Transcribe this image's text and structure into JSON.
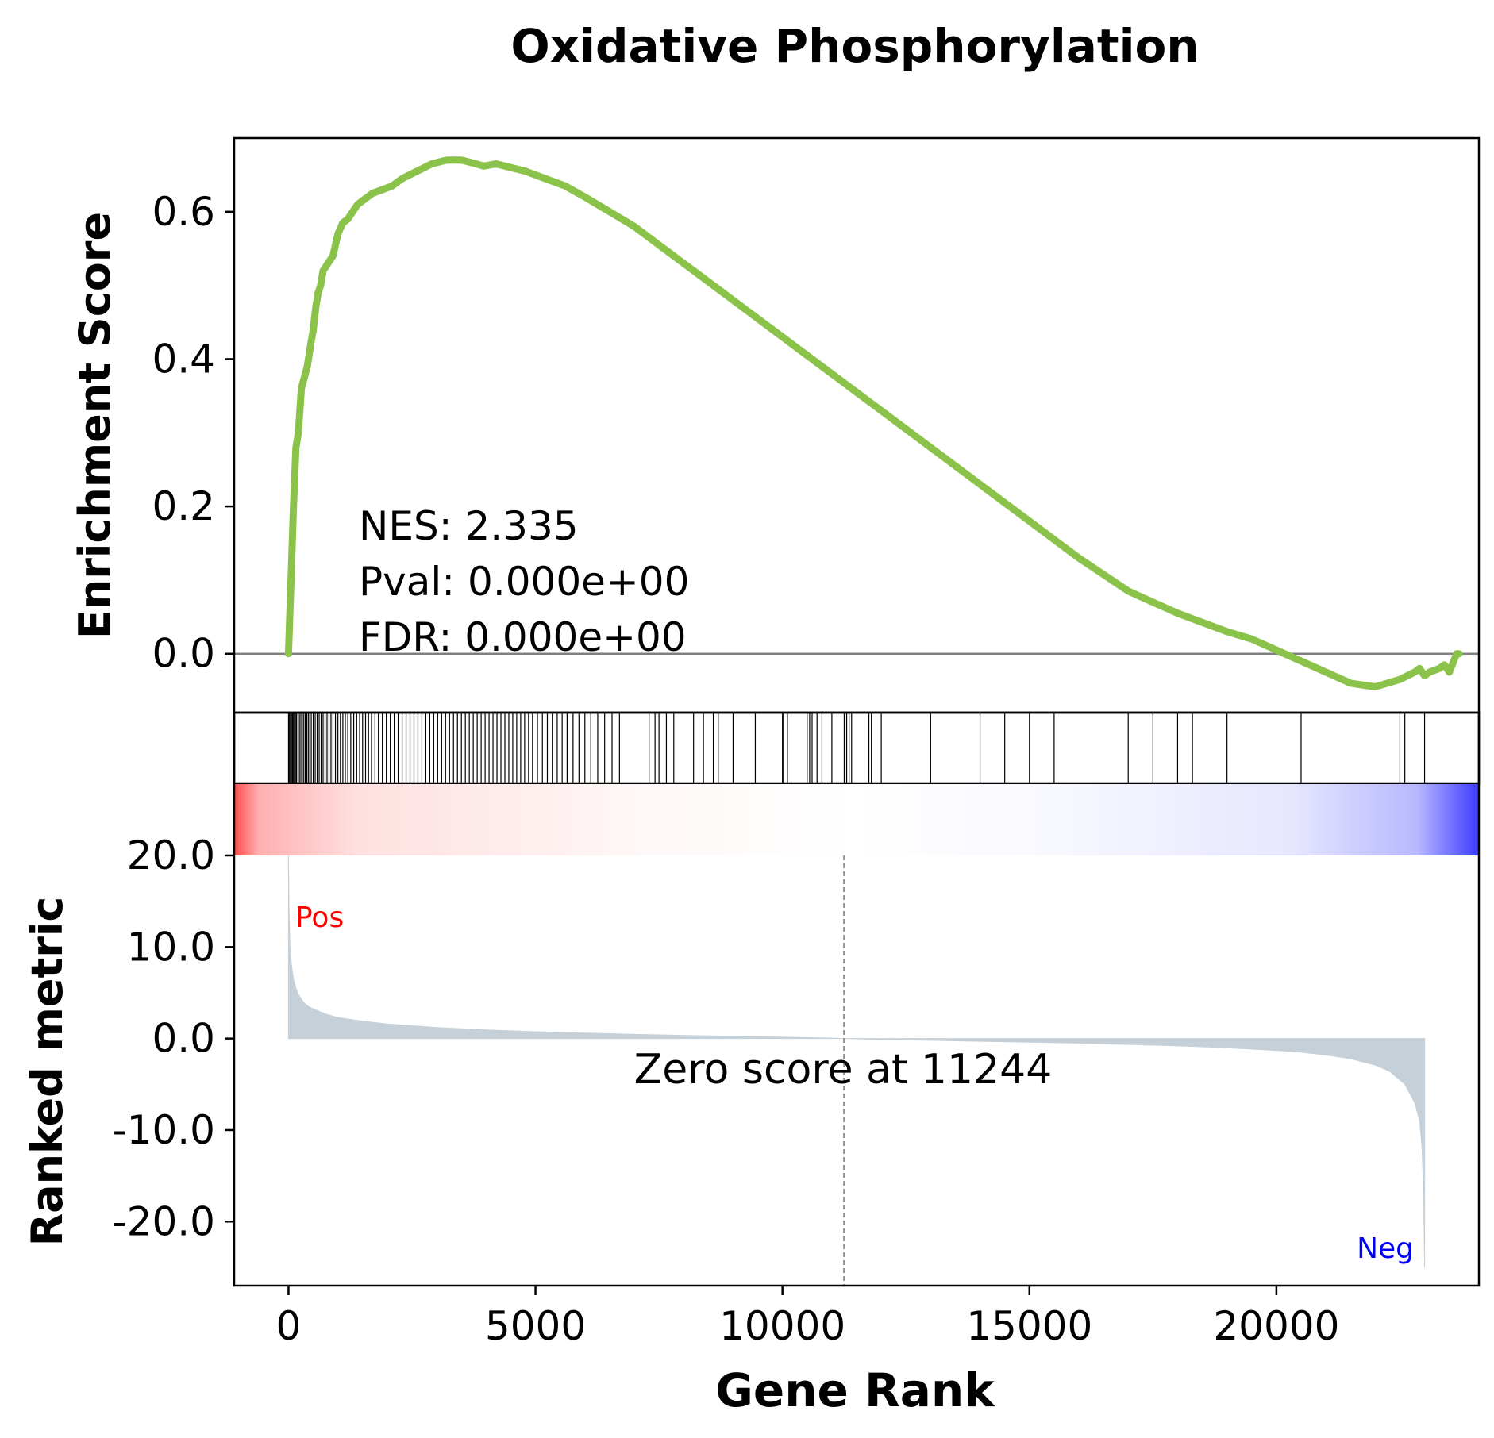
{
  "chart_data": {
    "type": "line",
    "title": "Oxidative Phosphorylation",
    "xlabel": "Gene Rank",
    "xlim": [
      -1100,
      24100
    ],
    "x_ticks": [
      0,
      5000,
      10000,
      15000,
      20000
    ],
    "x_tick_labels": [
      "0",
      "5000",
      "10000",
      "15000",
      "20000"
    ],
    "es_panel": {
      "ylabel": "Enrichment Score",
      "ylim": [
        -0.08,
        0.7
      ],
      "y_ticks": [
        0.0,
        0.2,
        0.4,
        0.6
      ],
      "y_tick_labels": [
        "0.0",
        "0.2",
        "0.4",
        "0.6"
      ],
      "baseline": 0.0,
      "line_color": "#8bc34a",
      "series": [
        {
          "x": [
            0,
            50,
            100,
            150,
            200,
            260,
            300,
            380,
            450,
            500,
            550,
            600,
            650,
            700,
            800,
            900,
            1000,
            1100,
            1200,
            1300,
            1400,
            1500,
            1700,
            1900,
            2100,
            2300,
            2600,
            2900,
            3200,
            3500,
            3800,
            3950,
            4200,
            4500,
            4800,
            5200,
            5600,
            6000,
            6500,
            7000,
            7500,
            8000,
            9000,
            10000,
            11000,
            12000,
            13000,
            14000,
            15000,
            16000,
            17000,
            18000,
            19000,
            19500,
            20000,
            20500,
            21000,
            21500,
            22000,
            22500,
            22800,
            22900,
            23000,
            23100,
            23300,
            23400,
            23500,
            23650,
            23700
          ],
          "y": [
            0.0,
            0.1,
            0.2,
            0.28,
            0.3,
            0.36,
            0.37,
            0.39,
            0.42,
            0.44,
            0.47,
            0.49,
            0.5,
            0.52,
            0.53,
            0.54,
            0.57,
            0.585,
            0.59,
            0.6,
            0.61,
            0.615,
            0.625,
            0.63,
            0.635,
            0.645,
            0.655,
            0.665,
            0.67,
            0.67,
            0.665,
            0.662,
            0.665,
            0.66,
            0.655,
            0.645,
            0.635,
            0.62,
            0.6,
            0.58,
            0.555,
            0.53,
            0.48,
            0.43,
            0.38,
            0.33,
            0.28,
            0.23,
            0.18,
            0.13,
            0.085,
            0.055,
            0.03,
            0.02,
            0.005,
            -0.01,
            -0.025,
            -0.04,
            -0.045,
            -0.035,
            -0.025,
            -0.02,
            -0.03,
            -0.025,
            -0.02,
            -0.015,
            -0.025,
            0.0,
            0.0
          ]
        }
      ],
      "annotation": [
        "NES: 2.335",
        "Pval: 0.000e+00",
        "FDR: 0.000e+00"
      ]
    },
    "hits_panel": {
      "hit_positions": [
        0,
        20,
        40,
        60,
        80,
        100,
        120,
        140,
        160,
        190,
        220,
        250,
        280,
        310,
        340,
        370,
        400,
        430,
        460,
        500,
        540,
        580,
        620,
        660,
        700,
        740,
        780,
        820,
        860,
        900,
        950,
        1000,
        1050,
        1100,
        1150,
        1200,
        1260,
        1320,
        1380,
        1440,
        1500,
        1560,
        1620,
        1680,
        1750,
        1820,
        1900,
        1980,
        2060,
        2140,
        2220,
        2300,
        2380,
        2460,
        2540,
        2620,
        2700,
        2780,
        2860,
        2940,
        3020,
        3100,
        3180,
        3260,
        3340,
        3420,
        3500,
        3580,
        3660,
        3740,
        3820,
        3900,
        3980,
        4060,
        4140,
        4220,
        4300,
        4380,
        4460,
        4540,
        4620,
        4700,
        4780,
        4860,
        4940,
        5040,
        5140,
        5240,
        5340,
        5440,
        5540,
        5640,
        5760,
        5880,
        6000,
        6120,
        6260,
        6400,
        6550,
        6700,
        7300,
        7420,
        7500,
        7650,
        7800,
        8200,
        8400,
        8600,
        8700,
        9000,
        9450,
        10000,
        10020,
        10100,
        10500,
        10550,
        10600,
        10700,
        10800,
        11000,
        11250,
        11300,
        11350,
        11400,
        11750,
        11800,
        12000,
        13000,
        14000,
        14500,
        15000,
        15500,
        17000,
        17500,
        18000,
        18300,
        19000,
        20500,
        22500,
        22600,
        23000
      ]
    },
    "rank_panel": {
      "ylabel": "Ranked metric",
      "ylim": [
        -27,
        20
      ],
      "y_ticks": [
        20,
        10,
        0,
        -10,
        -20
      ],
      "y_tick_labels": [
        "20.0",
        "10.0",
        "0.0",
        "-10.0",
        "-20.0"
      ],
      "fill_color": "#c5d0d8",
      "series": [
        {
          "x": [
            0,
            10,
            30,
            60,
            100,
            150,
            200,
            300,
            400,
            600,
            800,
            1000,
            1500,
            2000,
            3000,
            4000,
            5000,
            6000,
            7000,
            8000,
            9000,
            10000,
            11000,
            11244,
            12000,
            13000,
            14000,
            15000,
            16000,
            17000,
            18000,
            19000,
            20000,
            20500,
            21000,
            21500,
            22000,
            22300,
            22600,
            22800,
            22900,
            22950,
            22980,
            23000
          ],
          "y": [
            20.0,
            14.0,
            10.0,
            8.0,
            6.5,
            5.5,
            4.8,
            4.0,
            3.5,
            3.0,
            2.6,
            2.3,
            1.9,
            1.6,
            1.2,
            0.95,
            0.75,
            0.6,
            0.45,
            0.35,
            0.25,
            0.15,
            0.05,
            0.0,
            -0.1,
            -0.2,
            -0.3,
            -0.4,
            -0.5,
            -0.65,
            -0.8,
            -1.0,
            -1.3,
            -1.5,
            -1.8,
            -2.2,
            -2.9,
            -3.6,
            -5.0,
            -7.0,
            -9.0,
            -12.0,
            -17.0,
            -25.0
          ]
        }
      ],
      "zero_cross_x": 11244,
      "zero_cross_label": "Zero score at 11244",
      "pos_label": "Pos",
      "neg_label": "Neg",
      "pos_color": "#ff0000",
      "neg_color": "#0000ff"
    }
  }
}
